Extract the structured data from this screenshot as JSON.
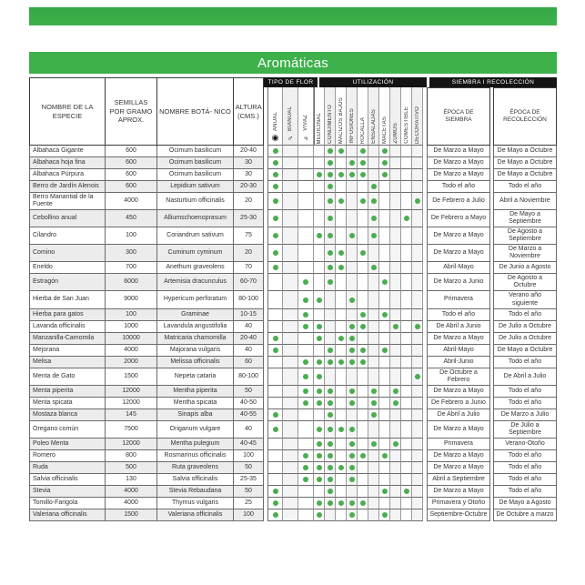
{
  "title": "Aromáticas",
  "colors": {
    "accent_green": "#3eb14b",
    "dot_green": "#4aad50",
    "header_bar": "#141414"
  },
  "groups": {
    "flower": "TIPO DE FLOR",
    "uses": "UTILIZACIÓN",
    "seasons": "SIEMBRA I RECOLECCIÓN"
  },
  "headers": {
    "name": "NOMBRE DE LA ESPECIE",
    "seeds": "SEMILLAS POR GRAMO APROX.",
    "botanical": "NOMBRE BOTÁ- NICO",
    "height": "ALTURA (CMS.)",
    "sowing": "ÉPOCA DE SIEMBRA",
    "harvest": "ÉPOCA DE RECOLECCIÓN"
  },
  "columns": {
    "flower_types": [
      {
        "id": "anual",
        "label": "ANUAL",
        "icon": "◉",
        "icon_name": "annual-circle-dot-icon"
      },
      {
        "id": "bianual",
        "label": "BIANUAL",
        "icon": "♂",
        "icon_name": "biennial-circle-arrow-icon"
      },
      {
        "id": "vivaz",
        "label": "VIVAZ",
        "icon": "♃",
        "icon_name": "perennial-symbol-icon"
      }
    ],
    "uses": [
      {
        "id": "medicinal",
        "label": "MEDICINAL"
      },
      {
        "id": "condimento",
        "label": "CONDIMENTO"
      },
      {
        "id": "macizos_bajos",
        "label": "MACIZOS BAJOS"
      },
      {
        "id": "infusiones",
        "label": "INFUSIONES"
      },
      {
        "id": "rocalla",
        "label": "ROCALLA"
      },
      {
        "id": "ensaladas",
        "label": "ENSALADAS"
      },
      {
        "id": "macetas",
        "label": "MACETAS"
      },
      {
        "id": "zumos",
        "label": "ZUMOS"
      },
      {
        "id": "comestible",
        "label": "COMESTIBLE"
      },
      {
        "id": "decorativo",
        "label": "DECORATIVO"
      }
    ]
  },
  "rows": [
    {
      "name": "Albahaca Gigante",
      "seeds": "600",
      "botanical": "Ocimum basilicum",
      "height": "20-40",
      "flower": "anual",
      "uses": [
        "condimento",
        "macizos_bajos",
        "rocalla",
        "macetas"
      ],
      "sowing": "De Marzo a Mayo",
      "harvest": "De Mayo a Octubre"
    },
    {
      "name": "Albahaca hoja fina",
      "seeds": "600",
      "botanical": "Ocimum basilicum",
      "height": "30",
      "flower": "anual",
      "uses": [
        "condimento",
        "infusiones",
        "rocalla",
        "macetas"
      ],
      "sowing": "De Marzo a Mayo",
      "harvest": "De Mayo a Octubre"
    },
    {
      "name": "Albahaca Púrpura",
      "seeds": "600",
      "botanical": "Ocimum basilicum",
      "height": "30",
      "flower": "anual",
      "uses": [
        "medicinal",
        "condimento",
        "macizos_bajos",
        "infusiones",
        "rocalla",
        "macetas"
      ],
      "sowing": "De Marzo a Mayo",
      "harvest": "De Mayo a Octubre"
    },
    {
      "name": "Berro de Jardín Alenois",
      "seeds": "600",
      "botanical": "Lepidium sativum",
      "height": "20-30",
      "flower": "anual",
      "uses": [
        "condimento",
        "ensaladas"
      ],
      "sowing": "Todo el año",
      "harvest": "Todo el año"
    },
    {
      "name": "Berro Manantial de la Fuente",
      "seeds": "4000",
      "botanical": "Nasturtium officinalis",
      "height": "20",
      "flower": "anual",
      "uses": [
        "condimento",
        "macizos_bajos",
        "rocalla",
        "ensaladas",
        "decorativo"
      ],
      "sowing": "De Febrero a Julio",
      "harvest": "Abril a Noviembre"
    },
    {
      "name": "Cebollino anual",
      "seeds": "450",
      "botanical": "Alliumschoenoprasum",
      "height": "25-30",
      "flower": "anual",
      "uses": [
        "condimento",
        "ensaladas",
        "comestible"
      ],
      "sowing": "De Febrero a Mayo",
      "harvest": "De Mayo a Septiembre"
    },
    {
      "name": "Cilandro",
      "seeds": "100",
      "botanical": "Coriandrum sativum",
      "height": "75",
      "flower": "anual",
      "uses": [
        "medicinal",
        "condimento",
        "infusiones",
        "ensaladas"
      ],
      "sowing": "De Marzo a Mayo",
      "harvest": "De Agosto a Septiembre"
    },
    {
      "name": "Comino",
      "seeds": "300",
      "botanical": "Cuminum cyminum",
      "height": "20",
      "flower": "anual",
      "uses": [
        "condimento",
        "macizos_bajos",
        "rocalla"
      ],
      "sowing": "De Marzo a Mayo",
      "harvest": "De Marzo a Noviembre"
    },
    {
      "name": "Eneldo",
      "seeds": "700",
      "botanical": "Anethum graveolens",
      "height": "70",
      "flower": "anual",
      "uses": [
        "condimento",
        "macizos_bajos",
        "ensaladas"
      ],
      "sowing": "Abril-Mayo",
      "harvest": "De Junio a Agosto"
    },
    {
      "name": "Estragón",
      "seeds": "6000",
      "botanical": "Artemisia dracunculus",
      "height": "60-70",
      "flower": "vivaz",
      "uses": [
        "condimento",
        "macetas"
      ],
      "sowing": "De Marzo a Junio",
      "harvest": "De Agosto a Octubre"
    },
    {
      "name": "Hierba de San Juan",
      "seeds": "9000",
      "botanical": "Hypericum perforatum",
      "height": "80-100",
      "flower": "vivaz",
      "uses": [
        "medicinal",
        "infusiones"
      ],
      "sowing": "Primavera",
      "harvest": "Verano año siguiente"
    },
    {
      "name": "Hierba para gatos",
      "seeds": "100",
      "botanical": "Graminae",
      "height": "10-15",
      "flower": "vivaz",
      "uses": [
        "rocalla",
        "macetas"
      ],
      "sowing": "Todo el año",
      "harvest": "Todo el año"
    },
    {
      "name": "Lavanda officinalis",
      "seeds": "1000",
      "botanical": "Lavandula angustifolia",
      "height": "40",
      "flower": "vivaz",
      "uses": [
        "medicinal",
        "infusiones",
        "rocalla",
        "zumos",
        "decorativo"
      ],
      "sowing": "De Abril a Junio",
      "harvest": "De Julio a Octubre"
    },
    {
      "name": "Manzanilla-Camomila",
      "seeds": "10000",
      "botanical": "Matricaria chamomilla",
      "height": "20-40",
      "flower": "anual",
      "uses": [
        "medicinal",
        "macizos_bajos",
        "infusiones"
      ],
      "sowing": "De Marzo a Mayo",
      "harvest": "De Julio a Octubre"
    },
    {
      "name": "Mejorana",
      "seeds": "4000",
      "botanical": "Majorana vulgaris",
      "height": "40",
      "flower": "anual",
      "uses": [
        "condimento",
        "infusiones",
        "rocalla",
        "macetas"
      ],
      "sowing": "Abril-Mayo",
      "harvest": "De Mayo a Octubre"
    },
    {
      "name": "Melisa",
      "seeds": "2000",
      "botanical": "Melissa officinalis",
      "height": "60",
      "flower": "vivaz",
      "uses": [
        "medicinal",
        "condimento",
        "macizos_bajos",
        "infusiones",
        "rocalla"
      ],
      "sowing": "Abril-Junio",
      "harvest": "Todo el año"
    },
    {
      "name": "Menta de Gato",
      "seeds": "1500",
      "botanical": "Nepeta cataria",
      "height": "80-100",
      "flower": "vivaz",
      "uses": [
        "medicinal",
        "decorativo"
      ],
      "sowing": "De Octubre a Febrero",
      "harvest": "De Abril a Julio"
    },
    {
      "name": "Menta piperita",
      "seeds": "12000",
      "botanical": "Mentha piperita",
      "height": "50",
      "flower": "vivaz",
      "uses": [
        "medicinal",
        "condimento",
        "infusiones",
        "ensaladas",
        "zumos"
      ],
      "sowing": "De Marzo a Mayo",
      "harvest": "Todo el año"
    },
    {
      "name": "Menta spicata",
      "seeds": "12000",
      "botanical": "Mentha spicata",
      "height": "40-50",
      "flower": "vivaz",
      "uses": [
        "medicinal",
        "condimento",
        "infusiones",
        "ensaladas",
        "zumos"
      ],
      "sowing": "De Febrero a Junio",
      "harvest": "Todo el año"
    },
    {
      "name": "Mostaza blanca",
      "seeds": "145",
      "botanical": "Sinapis alba",
      "height": "40-55",
      "flower": "anual",
      "uses": [
        "condimento",
        "ensaladas"
      ],
      "sowing": "De Abril a Julio",
      "harvest": "De Marzo a Julio"
    },
    {
      "name": "Oregano común",
      "seeds": "7500",
      "botanical": "Origanum vulgare",
      "height": "40",
      "flower": "anual",
      "uses": [
        "medicinal",
        "condimento",
        "macizos_bajos",
        "infusiones"
      ],
      "sowing": "De Marzo a Mayo",
      "harvest": "De Julio a Septiembre"
    },
    {
      "name": "Poleo Menta",
      "seeds": "12000",
      "botanical": "Mentha pulegium",
      "height": "40-45",
      "flower": "",
      "uses": [
        "medicinal",
        "condimento",
        "infusiones",
        "ensaladas",
        "zumos"
      ],
      "sowing": "Primavera",
      "harvest": "Verano-Otoño"
    },
    {
      "name": "Romero",
      "seeds": "800",
      "botanical": "Rosmarinus officinalis",
      "height": "100",
      "flower": "vivaz",
      "uses": [
        "medicinal",
        "condimento",
        "infusiones",
        "rocalla",
        "macetas"
      ],
      "sowing": "De Marzo a Mayo",
      "harvest": "Todo el año"
    },
    {
      "name": "Ruda",
      "seeds": "500",
      "botanical": "Ruta graveolens",
      "height": "50",
      "flower": "vivaz",
      "uses": [
        "medicinal",
        "condimento",
        "macizos_bajos",
        "infusiones"
      ],
      "sowing": "De Marzo a Mayo",
      "harvest": "Todo el año"
    },
    {
      "name": "Salvia officinalis",
      "seeds": "130",
      "botanical": "Salvia officinalis",
      "height": "25-35",
      "flower": "vivaz",
      "uses": [
        "medicinal",
        "condimento",
        "infusiones"
      ],
      "sowing": "Abril a Septiembre",
      "harvest": "Todo el año"
    },
    {
      "name": "Stevia",
      "seeds": "4000",
      "botanical": "Stevia Rebaudana",
      "height": "50",
      "flower": "anual",
      "uses": [
        "condimento",
        "macetas",
        "comestible"
      ],
      "sowing": "De Marzo a Mayo",
      "harvest": "Todo el año"
    },
    {
      "name": "Tomillo-Farigola",
      "seeds": "4000",
      "botanical": "Thymus vulgaris",
      "height": "25",
      "flower": "anual",
      "uses": [
        "medicinal",
        "condimento",
        "macizos_bajos",
        "infusiones",
        "rocalla"
      ],
      "sowing": "Primavera y Otoño",
      "harvest": "De Mayo a Agosto"
    },
    {
      "name": "Valeriana officinalis",
      "seeds": "1500",
      "botanical": "Valeriana officinalis",
      "height": "100",
      "flower": "anual",
      "uses": [
        "medicinal",
        "infusiones",
        "macetas"
      ],
      "sowing": "Septiembre-Octubre",
      "harvest": "De Octubre a marzo"
    }
  ]
}
